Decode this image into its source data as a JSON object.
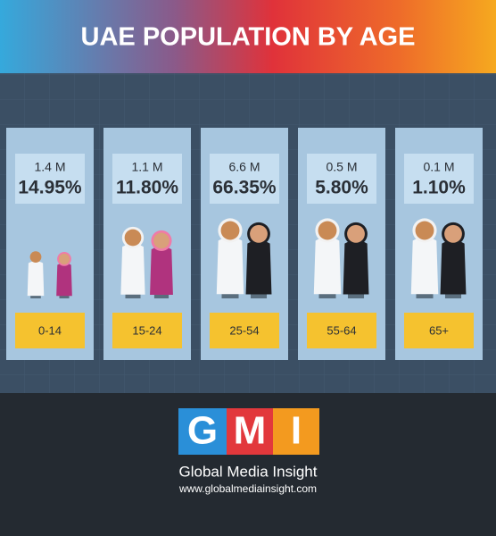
{
  "header": {
    "title": "UAE POPULATION BY AGE"
  },
  "groups": [
    {
      "population": "1.4 M",
      "percent": "14.95%",
      "age": "0-14"
    },
    {
      "population": "1.1 M",
      "percent": "11.80%",
      "age": "15-24"
    },
    {
      "population": "6.6 M",
      "percent": "66.35%",
      "age": "25-54"
    },
    {
      "population": "0.5 M",
      "percent": "5.80%",
      "age": "55-64"
    },
    {
      "population": "0.1 M",
      "percent": "1.10%",
      "age": "65+"
    }
  ],
  "footer": {
    "logo": [
      "G",
      "M",
      "I"
    ],
    "name": "Global Media Insight",
    "url": "www.globalmediainsight.com"
  }
}
